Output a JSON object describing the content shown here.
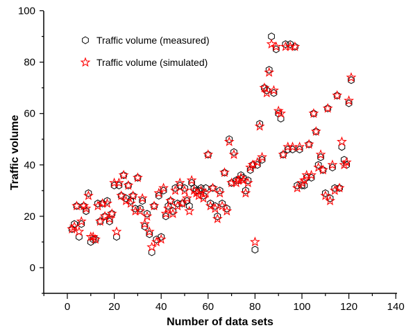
{
  "chart_data": {
    "type": "scatter",
    "title": "",
    "xlabel": "Number of data sets",
    "ylabel": "Traffic volume",
    "xlim": [
      -10,
      140
    ],
    "ylim": [
      -10,
      100
    ],
    "x_ticks": [
      0,
      20,
      40,
      60,
      80,
      100,
      120,
      140
    ],
    "y_ticks": [
      0,
      20,
      40,
      60,
      80,
      100
    ],
    "grid": false,
    "legend_position": "top-left",
    "series": [
      {
        "name": "Traffic volume (measured)",
        "marker": "hexagon",
        "color": "#000000",
        "points": [
          [
            2,
            15
          ],
          [
            3,
            17
          ],
          [
            4,
            24
          ],
          [
            5,
            12
          ],
          [
            6,
            17
          ],
          [
            7,
            24
          ],
          [
            8,
            22
          ],
          [
            9,
            29
          ],
          [
            10,
            10
          ],
          [
            11,
            11
          ],
          [
            12,
            11
          ],
          [
            13,
            25
          ],
          [
            14,
            18
          ],
          [
            15,
            25
          ],
          [
            16,
            20
          ],
          [
            17,
            26
          ],
          [
            18,
            18
          ],
          [
            19,
            21
          ],
          [
            20,
            32
          ],
          [
            21,
            12
          ],
          [
            22,
            32
          ],
          [
            23,
            28
          ],
          [
            24,
            36
          ],
          [
            25,
            27
          ],
          [
            26,
            32
          ],
          [
            27,
            26
          ],
          [
            28,
            28
          ],
          [
            29,
            23
          ],
          [
            30,
            35
          ],
          [
            31,
            23
          ],
          [
            32,
            26
          ],
          [
            33,
            16
          ],
          [
            34,
            21
          ],
          [
            35,
            13
          ],
          [
            36,
            6
          ],
          [
            37,
            24
          ],
          [
            38,
            11
          ],
          [
            39,
            28
          ],
          [
            40,
            12
          ],
          [
            41,
            30
          ],
          [
            42,
            20
          ],
          [
            43,
            24
          ],
          [
            44,
            26
          ],
          [
            45,
            22
          ],
          [
            46,
            31
          ],
          [
            47,
            25
          ],
          [
            48,
            32
          ],
          [
            49,
            25
          ],
          [
            50,
            31
          ],
          [
            51,
            26
          ],
          [
            52,
            24
          ],
          [
            53,
            33
          ],
          [
            54,
            31
          ],
          [
            55,
            30
          ],
          [
            56,
            30
          ],
          [
            57,
            31
          ],
          [
            58,
            28
          ],
          [
            59,
            31
          ],
          [
            60,
            44
          ],
          [
            61,
            25
          ],
          [
            62,
            31
          ],
          [
            63,
            24
          ],
          [
            64,
            20
          ],
          [
            65,
            30
          ],
          [
            66,
            25
          ],
          [
            67,
            37
          ],
          [
            68,
            23
          ],
          [
            69,
            50
          ],
          [
            70,
            33
          ],
          [
            71,
            45
          ],
          [
            72,
            34
          ],
          [
            73,
            34
          ],
          [
            74,
            36
          ],
          [
            75,
            35
          ],
          [
            76,
            30
          ],
          [
            77,
            34
          ],
          [
            78,
            38
          ],
          [
            79,
            40
          ],
          [
            80,
            7
          ],
          [
            81,
            40
          ],
          [
            82,
            56
          ],
          [
            83,
            42
          ],
          [
            84,
            70
          ],
          [
            85,
            69
          ],
          [
            86,
            77
          ],
          [
            87,
            90
          ],
          [
            88,
            68
          ],
          [
            89,
            85
          ],
          [
            90,
            60
          ],
          [
            91,
            58
          ],
          [
            92,
            44
          ],
          [
            93,
            87
          ],
          [
            94,
            46
          ],
          [
            95,
            87
          ],
          [
            96,
            46
          ],
          [
            97,
            86
          ],
          [
            98,
            32
          ],
          [
            99,
            46
          ],
          [
            100,
            32
          ],
          [
            101,
            32
          ],
          [
            102,
            35
          ],
          [
            103,
            48
          ],
          [
            104,
            35
          ],
          [
            105,
            60
          ],
          [
            106,
            53
          ],
          [
            107,
            40
          ],
          [
            108,
            43
          ],
          [
            109,
            38
          ],
          [
            110,
            29
          ],
          [
            111,
            62
          ],
          [
            112,
            27
          ],
          [
            113,
            39
          ],
          [
            114,
            31
          ],
          [
            115,
            67
          ],
          [
            116,
            31
          ],
          [
            117,
            47
          ],
          [
            118,
            42
          ],
          [
            119,
            40
          ],
          [
            120,
            64
          ],
          [
            121,
            73
          ]
        ]
      },
      {
        "name": "Traffic volume (simulated)",
        "marker": "star",
        "color": "#ff0000",
        "points": [
          [
            2,
            15
          ],
          [
            3,
            16
          ],
          [
            4,
            24
          ],
          [
            5,
            14
          ],
          [
            6,
            18
          ],
          [
            7,
            24
          ],
          [
            8,
            23
          ],
          [
            9,
            28
          ],
          [
            10,
            12
          ],
          [
            11,
            12
          ],
          [
            12,
            11
          ],
          [
            13,
            24
          ],
          [
            14,
            18
          ],
          [
            15,
            25
          ],
          [
            16,
            20
          ],
          [
            17,
            25
          ],
          [
            18,
            19
          ],
          [
            19,
            21
          ],
          [
            20,
            33
          ],
          [
            21,
            14
          ],
          [
            22,
            33
          ],
          [
            23,
            28
          ],
          [
            24,
            36
          ],
          [
            25,
            26
          ],
          [
            26,
            32
          ],
          [
            27,
            25
          ],
          [
            28,
            28
          ],
          [
            29,
            22
          ],
          [
            30,
            35
          ],
          [
            31,
            22
          ],
          [
            32,
            27
          ],
          [
            33,
            17
          ],
          [
            34,
            20
          ],
          [
            35,
            14
          ],
          [
            36,
            8
          ],
          [
            37,
            24
          ],
          [
            38,
            10
          ],
          [
            39,
            29
          ],
          [
            40,
            11
          ],
          [
            41,
            31
          ],
          [
            42,
            21
          ],
          [
            43,
            23
          ],
          [
            44,
            26
          ],
          [
            45,
            21
          ],
          [
            46,
            30
          ],
          [
            47,
            24
          ],
          [
            48,
            33
          ],
          [
            49,
            25
          ],
          [
            50,
            30
          ],
          [
            51,
            27
          ],
          [
            52,
            22
          ],
          [
            53,
            34
          ],
          [
            54,
            30
          ],
          [
            55,
            29
          ],
          [
            56,
            28
          ],
          [
            57,
            30
          ],
          [
            58,
            27
          ],
          [
            59,
            29
          ],
          [
            60,
            44
          ],
          [
            61,
            24
          ],
          [
            62,
            31
          ],
          [
            63,
            23
          ],
          [
            64,
            19
          ],
          [
            65,
            29
          ],
          [
            66,
            24
          ],
          [
            67,
            37
          ],
          [
            68,
            22
          ],
          [
            69,
            49
          ],
          [
            70,
            33
          ],
          [
            71,
            44
          ],
          [
            72,
            33
          ],
          [
            73,
            34
          ],
          [
            74,
            35
          ],
          [
            75,
            34
          ],
          [
            76,
            29
          ],
          [
            77,
            33
          ],
          [
            78,
            39
          ],
          [
            79,
            40
          ],
          [
            80,
            10
          ],
          [
            81,
            41
          ],
          [
            82,
            55
          ],
          [
            83,
            43
          ],
          [
            84,
            70
          ],
          [
            85,
            68
          ],
          [
            86,
            76
          ],
          [
            87,
            87
          ],
          [
            88,
            69
          ],
          [
            89,
            86
          ],
          [
            90,
            61
          ],
          [
            91,
            60
          ],
          [
            92,
            44
          ],
          [
            93,
            86
          ],
          [
            94,
            47
          ],
          [
            95,
            86
          ],
          [
            96,
            47
          ],
          [
            97,
            86
          ],
          [
            98,
            31
          ],
          [
            99,
            47
          ],
          [
            100,
            33
          ],
          [
            101,
            34
          ],
          [
            102,
            36
          ],
          [
            103,
            48
          ],
          [
            104,
            36
          ],
          [
            105,
            60
          ],
          [
            106,
            53
          ],
          [
            107,
            39
          ],
          [
            108,
            44
          ],
          [
            109,
            38
          ],
          [
            110,
            28
          ],
          [
            111,
            62
          ],
          [
            112,
            26
          ],
          [
            113,
            40
          ],
          [
            114,
            30
          ],
          [
            115,
            67
          ],
          [
            116,
            31
          ],
          [
            117,
            49
          ],
          [
            118,
            40
          ],
          [
            119,
            41
          ],
          [
            120,
            65
          ],
          [
            121,
            74
          ]
        ]
      }
    ]
  }
}
